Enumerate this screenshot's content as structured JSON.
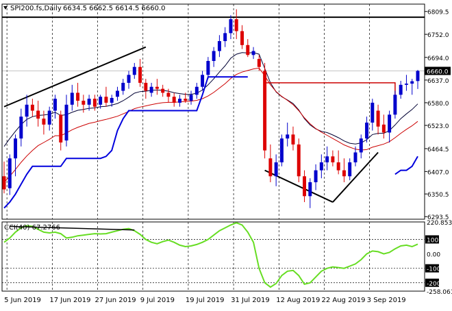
{
  "chart_data": [
    {
      "type": "candlestick",
      "header": {
        "symbol": "SPI200.fs,Daily",
        "ohlc_text": "6634.5 6662.5 6614.5 6660.0"
      },
      "last_price_label": "6660.0",
      "last_price": 6660.0,
      "price_ticks": [
        "6809.5",
        "6752.0",
        "6694.0",
        "6637.0",
        "6580.0",
        "6523.0",
        "6464.5",
        "6407.0",
        "6350.5",
        "6293.5"
      ],
      "price_tick_values": [
        6809.5,
        6752.0,
        6694.0,
        6637.0,
        6580.0,
        6523.0,
        6464.5,
        6407.0,
        6350.5,
        6293.5
      ],
      "ylim": [
        6287,
        6828
      ],
      "x_labels": [
        "5 Jun 2019",
        "17 Jun 2019",
        "27 Jun 2019",
        "9 Jul 2019",
        "19 Jul 2019",
        "31 Jul 2019",
        "12 Aug 2019",
        "22 Aug 2019",
        "3 Sep 2019"
      ],
      "x_label_bar_index": [
        0,
        8,
        16,
        24,
        32,
        40,
        48,
        56,
        64
      ],
      "horizontal_line": 6795,
      "resistance_level": 6630,
      "ohlc": [
        [
          6395,
          6432,
          6352,
          6362
        ],
        [
          6365,
          6450,
          6348,
          6440
        ],
        [
          6440,
          6500,
          6395,
          6490
        ],
        [
          6490,
          6565,
          6470,
          6545
        ],
        [
          6545,
          6600,
          6520,
          6575
        ],
        [
          6575,
          6590,
          6545,
          6560
        ],
        [
          6560,
          6585,
          6520,
          6540
        ],
        [
          6540,
          6560,
          6500,
          6525
        ],
        [
          6525,
          6570,
          6510,
          6560
        ],
        [
          6560,
          6600,
          6540,
          6590
        ],
        [
          6550,
          6560,
          6460,
          6480
        ],
        [
          6485,
          6600,
          6470,
          6575
        ],
        [
          6575,
          6625,
          6560,
          6605
        ],
        [
          6605,
          6630,
          6570,
          6585
        ],
        [
          6585,
          6600,
          6555,
          6575
        ],
        [
          6575,
          6600,
          6560,
          6590
        ],
        [
          6590,
          6600,
          6560,
          6570
        ],
        [
          6575,
          6600,
          6565,
          6595
        ],
        [
          6595,
          6620,
          6570,
          6580
        ],
        [
          6580,
          6600,
          6570,
          6592
        ],
        [
          6595,
          6620,
          6585,
          6610
        ],
        [
          6610,
          6640,
          6600,
          6630
        ],
        [
          6630,
          6660,
          6615,
          6650
        ],
        [
          6650,
          6680,
          6640,
          6670
        ],
        [
          6670,
          6690,
          6620,
          6630
        ],
        [
          6630,
          6640,
          6590,
          6610
        ],
        [
          6605,
          6630,
          6595,
          6620
        ],
        [
          6620,
          6640,
          6600,
          6615
        ],
        [
          6615,
          6625,
          6595,
          6605
        ],
        [
          6605,
          6615,
          6580,
          6595
        ],
        [
          6595,
          6605,
          6570,
          6580
        ],
        [
          6580,
          6600,
          6570,
          6590
        ],
        [
          6590,
          6605,
          6580,
          6585
        ],
        [
          6585,
          6610,
          6575,
          6600
        ],
        [
          6600,
          6630,
          6590,
          6620
        ],
        [
          6620,
          6660,
          6610,
          6650
        ],
        [
          6650,
          6695,
          6640,
          6685
        ],
        [
          6685,
          6720,
          6670,
          6710
        ],
        [
          6710,
          6750,
          6695,
          6735
        ],
        [
          6735,
          6770,
          6720,
          6755
        ],
        [
          6755,
          6800,
          6740,
          6790
        ],
        [
          6790,
          6815,
          6740,
          6760
        ],
        [
          6760,
          6775,
          6715,
          6725
        ],
        [
          6725,
          6740,
          6695,
          6700
        ],
        [
          6700,
          6720,
          6690,
          6710
        ],
        [
          6690,
          6700,
          6660,
          6670
        ],
        [
          6660,
          6680,
          6440,
          6460
        ],
        [
          6440,
          6475,
          6380,
          6395
        ],
        [
          6395,
          6450,
          6370,
          6430
        ],
        [
          6430,
          6500,
          6420,
          6490
        ],
        [
          6490,
          6530,
          6470,
          6500
        ],
        [
          6500,
          6520,
          6460,
          6475
        ],
        [
          6475,
          6490,
          6380,
          6395
        ],
        [
          6395,
          6410,
          6330,
          6345
        ],
        [
          6345,
          6390,
          6315,
          6380
        ],
        [
          6380,
          6425,
          6360,
          6410
        ],
        [
          6410,
          6450,
          6390,
          6430
        ],
        [
          6430,
          6470,
          6410,
          6445
        ],
        [
          6445,
          6460,
          6420,
          6430
        ],
        [
          6430,
          6460,
          6400,
          6410
        ],
        [
          6410,
          6440,
          6380,
          6395
        ],
        [
          6395,
          6440,
          6385,
          6430
        ],
        [
          6430,
          6470,
          6420,
          6455
        ],
        [
          6455,
          6500,
          6440,
          6490
        ],
        [
          6490,
          6545,
          6480,
          6530
        ],
        [
          6530,
          6590,
          6510,
          6580
        ],
        [
          6560,
          6575,
          6500,
          6520
        ],
        [
          6525,
          6550,
          6490,
          6505
        ],
        [
          6505,
          6560,
          6480,
          6550
        ],
        [
          6550,
          6610,
          6540,
          6600
        ],
        [
          6600,
          6635,
          6590,
          6625
        ],
        [
          6625,
          6650,
          6610,
          6628
        ],
        [
          6628,
          6640,
          6600,
          6634
        ],
        [
          6634.5,
          6662.5,
          6614.5,
          6660.0
        ]
      ],
      "series": [
        {
          "values": [
            6470,
            6490,
            6508,
            6525,
            6538,
            6545,
            6548,
            6549,
            6551,
            6556,
            6548,
            6550,
            6556,
            6561,
            6563,
            6566,
            6567,
            6570,
            6571,
            6574,
            6578,
            6585,
            6594,
            6604,
            6608,
            6609,
            6611,
            6612,
            6611,
            6609,
            6605,
            6603,
            6601,
            6601,
            6604,
            6612,
            6625,
            6640,
            6657,
            6673,
            6692,
            6702,
            6706,
            6705,
            6706,
            6702,
            6666,
            6630,
            6607,
            6595,
            6587,
            6578,
            6562,
            6540,
            6524,
            6514,
            6508,
            6505,
            6499,
            6492,
            6484,
            6478,
            6476,
            6479,
            6487,
            6500,
            6503,
            6503,
            6510,
            6524,
            6540,
            6552,
            6563,
            6577
          ]
        },
        {
          "values": [
            6380,
            6395,
            6412,
            6430,
            6446,
            6460,
            6472,
            6480,
            6488,
            6497,
            6497,
            6504,
            6512,
            6518,
            6523,
            6528,
            6531,
            6535,
            6538,
            6542,
            6546,
            6552,
            6558,
            6565,
            6569,
            6572,
            6575,
            6578,
            6580,
            6581,
            6581,
            6582,
            6583,
            6584,
            6586,
            6590,
            6597,
            6606,
            6617,
            6628,
            6641,
            6651,
            6657,
            6661,
            6665,
            6667,
            6648,
            6625,
            6608,
            6596,
            6586,
            6575,
            6560,
            6542,
            6527,
            6515,
            6506,
            6498,
            6490,
            6482,
            6474,
            6468,
            6463,
            6461,
            6462,
            6468,
            6472,
            6476,
            6482,
            6492,
            6503,
            6513,
            6522,
            6533
          ]
        },
        {
          "values": [
            6315,
            6330,
            6350,
            6375,
            6400,
            6420,
            6420,
            6420,
            6420,
            6420,
            6420,
            6440,
            6440,
            6440,
            6440,
            6440,
            6440,
            6440,
            6445,
            6460,
            6510,
            6540,
            6560,
            6560,
            6560,
            6560,
            6560,
            6560,
            6560,
            6560,
            6560,
            6560,
            6560,
            6560,
            6560,
            6600,
            6645,
            6645,
            6645,
            6645,
            6645,
            6645,
            6645,
            6645,
            null,
            null,
            null,
            null,
            null,
            null,
            null,
            null,
            null,
            null,
            null,
            null,
            null,
            null,
            null,
            null,
            null,
            null,
            null,
            null,
            null,
            null,
            null,
            null,
            null,
            6400,
            6410,
            6410,
            6420,
            6445
          ]
        }
      ],
      "trend_lines": [
        {
          "from": [
            0,
            6570
          ],
          "to": [
            25,
            6720
          ]
        },
        {
          "from": [
            46,
            6410
          ],
          "to": [
            58,
            6330
          ]
        },
        {
          "from": [
            58,
            6330
          ],
          "to": [
            66,
            6455
          ]
        }
      ]
    },
    {
      "type": "line",
      "label": "CCI(40) 67.2766",
      "ticks": [
        "220.8537",
        "100",
        "0.00",
        "-100",
        "-200",
        "-258.0618"
      ],
      "tick_values": [
        220.8537,
        100,
        0,
        -100,
        -200,
        -258.0618
      ],
      "ylim": [
        -258.0618,
        220.8537
      ],
      "levels": [
        100,
        -100,
        -200
      ],
      "values": [
        80,
        110,
        150,
        180,
        195,
        190,
        170,
        150,
        145,
        150,
        140,
        110,
        115,
        125,
        130,
        135,
        140,
        138,
        140,
        150,
        160,
        170,
        175,
        160,
        135,
        100,
        80,
        70,
        85,
        95,
        80,
        60,
        50,
        55,
        65,
        80,
        100,
        130,
        160,
        180,
        200,
        215,
        200,
        150,
        80,
        -100,
        -200,
        -230,
        -205,
        -150,
        -120,
        -115,
        -150,
        -210,
        -200,
        -160,
        -120,
        -100,
        -90,
        -95,
        -100,
        -85,
        -70,
        -40,
        0,
        20,
        15,
        0,
        10,
        35,
        55,
        60,
        50,
        67.2766
      ],
      "trend_lines": [
        {
          "from": [
            1,
            190
          ],
          "to": [
            23,
            165
          ]
        }
      ]
    }
  ]
}
